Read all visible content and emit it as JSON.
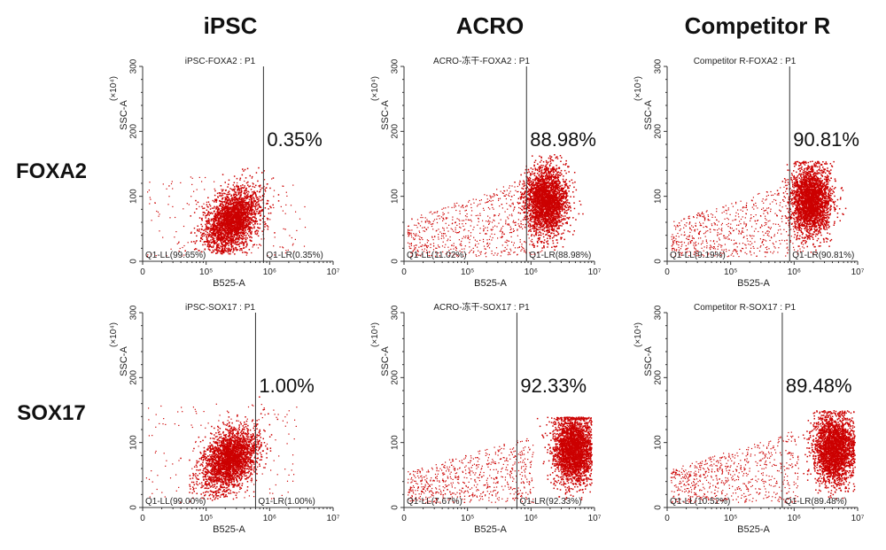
{
  "columns": [
    "iPSC",
    "ACRO",
    "Competitor R"
  ],
  "rows": [
    "FOXA2",
    "SOX17"
  ],
  "colors": {
    "dots": "#cc0000",
    "axis": "#333333"
  },
  "chart_data": [
    {
      "type": "scatter",
      "title": "iPSC-FOXA2 : P1",
      "xlabel": "B525-A",
      "ylabel": "SSC-A",
      "ylabel_unit": "(×10⁴)",
      "x_scale": "log",
      "xlim": [
        10000,
        10000000
      ],
      "ylim": [
        0,
        300
      ],
      "x_tick_labels": [
        "0",
        "10⁵",
        "10⁶",
        "10⁷"
      ],
      "y_tick_labels": [
        "0",
        "100",
        "200",
        "300"
      ],
      "gate_x": 800000,
      "q_ll_label": "Q1-LL(99.65%)",
      "q_lr_label": "Q1-LR(0.35%)",
      "q_lr_percent": "0.35%",
      "cluster": {
        "x_center": 250000,
        "y_center": 65,
        "y_max": 145,
        "points": 2600
      }
    },
    {
      "type": "scatter",
      "title": "ACRO-冻干-FOXA2 : P1",
      "xlabel": "B525-A",
      "ylabel": "SSC-A",
      "ylabel_unit": "(×10⁴)",
      "x_scale": "log",
      "xlim": [
        10000,
        10000000
      ],
      "ylim": [
        0,
        300
      ],
      "x_tick_labels": [
        "0",
        "10⁵",
        "10⁶",
        "10⁷"
      ],
      "y_tick_labels": [
        "0",
        "100",
        "200",
        "300"
      ],
      "gate_x": 850000,
      "q_ll_label": "Q1-LL(11.02%)",
      "q_lr_label": "Q1-LR(88.98%)",
      "q_lr_percent": "88.98%",
      "cluster": {
        "x_center": 1700000,
        "y_center": 95,
        "y_max": 165,
        "points": 2600
      }
    },
    {
      "type": "scatter",
      "title": "Competitor R-FOXA2 : P1",
      "xlabel": "B525-A",
      "ylabel": "SSC-A",
      "ylabel_unit": "(×10⁴)",
      "x_scale": "log",
      "xlim": [
        10000,
        10000000
      ],
      "ylim": [
        0,
        300
      ],
      "x_tick_labels": [
        "0",
        "10⁵",
        "10⁶",
        "10⁷"
      ],
      "y_tick_labels": [
        "0",
        "100",
        "200",
        "300"
      ],
      "gate_x": 850000,
      "q_ll_label": "Q1-LL(9.19%)",
      "q_lr_label": "Q1-LR(90.81%)",
      "q_lr_percent": "90.81%",
      "cluster": {
        "x_center": 1800000,
        "y_center": 95,
        "y_max": 155,
        "points": 2600
      }
    },
    {
      "type": "scatter",
      "title": "iPSC-SOX17 : P1",
      "xlabel": "B525-A",
      "ylabel": "SSC-A",
      "ylabel_unit": "(×10⁴)",
      "x_scale": "log",
      "xlim": [
        10000,
        10000000
      ],
      "ylim": [
        0,
        300
      ],
      "x_tick_labels": [
        "0",
        "10⁵",
        "10⁶",
        "10⁷"
      ],
      "y_tick_labels": [
        "0",
        "100",
        "200",
        "300"
      ],
      "gate_x": 600000,
      "q_ll_label": "Q1-LL(99.00%)",
      "q_lr_label": "Q1-LR(1.00%)",
      "q_lr_percent": "1.00%",
      "cluster": {
        "x_center": 230000,
        "y_center": 75,
        "y_max": 180,
        "points": 2600
      }
    },
    {
      "type": "scatter",
      "title": "ACRO-冻干-SOX17 : P1",
      "xlabel": "B525-A",
      "ylabel": "SSC-A",
      "ylabel_unit": "(×10⁴)",
      "x_scale": "log",
      "xlim": [
        10000,
        10000000
      ],
      "ylim": [
        0,
        300
      ],
      "x_tick_labels": [
        "0",
        "10⁵",
        "10⁶",
        "10⁷"
      ],
      "y_tick_labels": [
        "0",
        "100",
        "200",
        "300"
      ],
      "gate_x": 600000,
      "q_ll_label": "Q1-LL(7.67%)",
      "q_lr_label": "Q1-LR(92.33%)",
      "q_lr_percent": "92.33%",
      "cluster": {
        "x_center": 4500000,
        "y_center": 90,
        "y_max": 140,
        "points": 2600
      }
    },
    {
      "type": "scatter",
      "title": "Competitor R-SOX17 : P1",
      "xlabel": "B525-A",
      "ylabel": "SSC-A",
      "ylabel_unit": "(×10⁴)",
      "x_scale": "log",
      "xlim": [
        10000,
        10000000
      ],
      "ylim": [
        0,
        300
      ],
      "x_tick_labels": [
        "0",
        "10⁵",
        "10⁶",
        "10⁷"
      ],
      "y_tick_labels": [
        "0",
        "100",
        "200",
        "300"
      ],
      "gate_x": 650000,
      "q_ll_label": "Q1-LL(10.52%)",
      "q_lr_label": "Q1-LR(89.48%)",
      "q_lr_percent": "89.48%",
      "cluster": {
        "x_center": 4200000,
        "y_center": 90,
        "y_max": 150,
        "points": 2600
      }
    }
  ]
}
